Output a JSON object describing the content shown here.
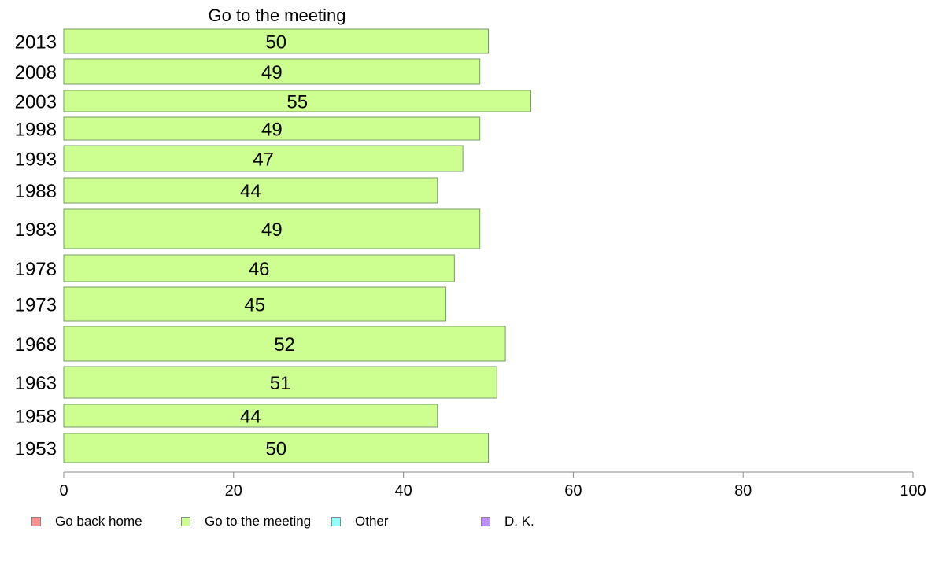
{
  "chart_data": {
    "type": "bar",
    "orientation": "horizontal",
    "title": "Go to the meeting",
    "categories": [
      "2013",
      "2008",
      "2003",
      "1998",
      "1993",
      "1988",
      "1983",
      "1978",
      "1973",
      "1968",
      "1963",
      "1958",
      "1953"
    ],
    "series": [
      {
        "name": "Go to the meeting",
        "values": [
          50,
          49,
          55,
          49,
          47,
          44,
          49,
          46,
          45,
          52,
          51,
          44,
          50
        ]
      }
    ],
    "xlim": [
      0,
      100
    ],
    "xticks": [
      "0",
      "20",
      "40",
      "60",
      "80",
      "100"
    ],
    "grid": false,
    "legend_position": "bottom-left"
  },
  "legend": [
    {
      "label": "Go back home",
      "color": "#ff8f8f"
    },
    {
      "label": "Go to the meeting",
      "color": "#ccff8f"
    },
    {
      "label": "Other",
      "color": "#8fffff"
    },
    {
      "label": "D. K.",
      "color": "#bf8fff"
    }
  ],
  "bar_color": "#ccff8f"
}
